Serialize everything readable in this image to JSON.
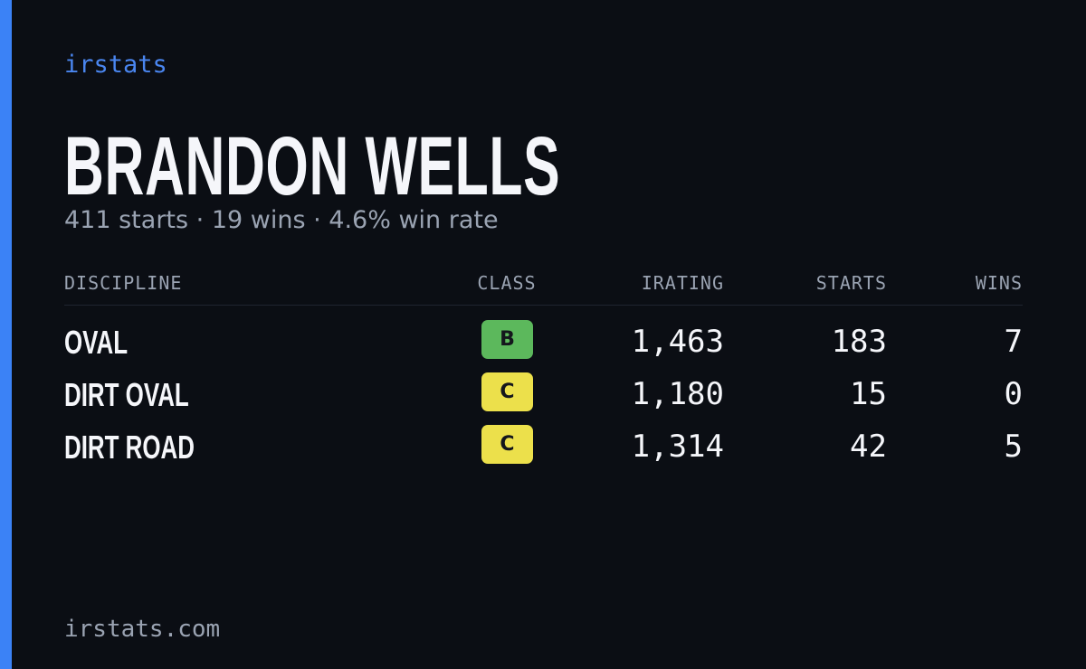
{
  "header": {
    "brand": "irstats",
    "name": "BRANDON WELLS",
    "subtitle": "411 starts · 19 wins · 4.6% win rate"
  },
  "table": {
    "columns": [
      "DISCIPLINE",
      "CLASS",
      "IRATING",
      "STARTS",
      "WINS"
    ],
    "rows": [
      {
        "discipline": "OVAL",
        "class": "B",
        "class_color": "#5cb85c",
        "irating": "1,463",
        "starts": "183",
        "wins": "7"
      },
      {
        "discipline": "DIRT OVAL",
        "class": "C",
        "class_color": "#ece04b",
        "irating": "1,180",
        "starts": "15",
        "wins": "0"
      },
      {
        "discipline": "DIRT ROAD",
        "class": "C",
        "class_color": "#ece04b",
        "irating": "1,314",
        "starts": "42",
        "wins": "5"
      }
    ]
  },
  "footer": {
    "site": "irstats.com"
  }
}
